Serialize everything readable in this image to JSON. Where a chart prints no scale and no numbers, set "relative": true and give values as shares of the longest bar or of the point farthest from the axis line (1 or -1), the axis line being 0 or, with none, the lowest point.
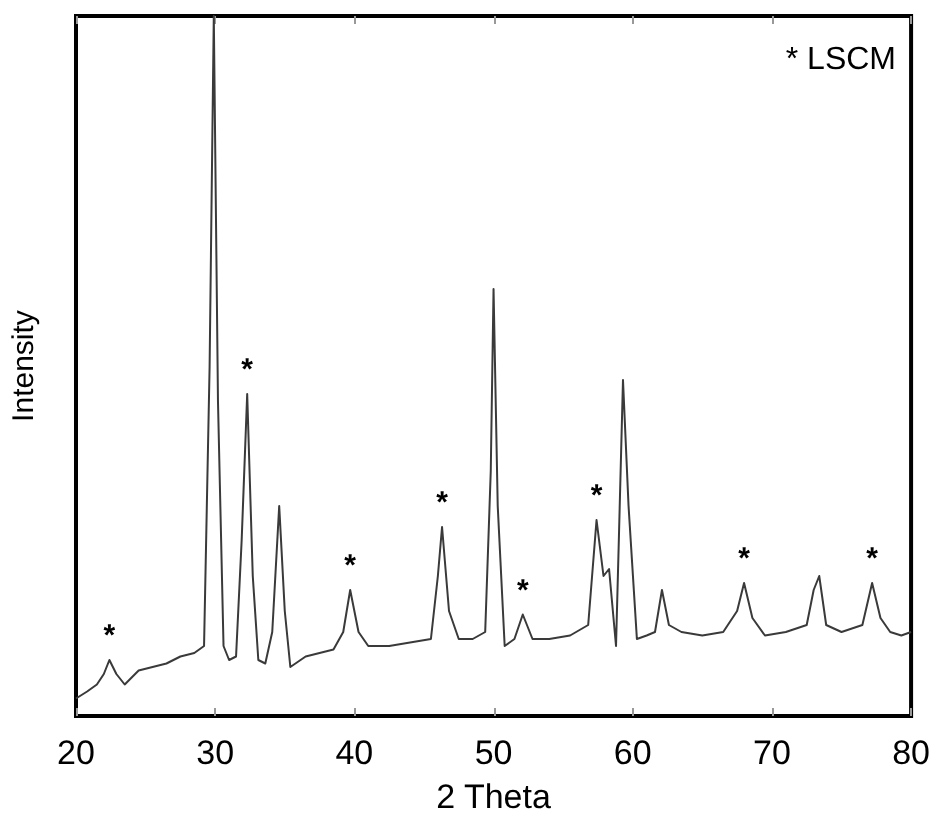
{
  "chart_data": {
    "type": "line",
    "relative": true,
    "xlabel": "2 Theta",
    "ylabel": "Intensity",
    "x": [
      20,
      20.8,
      21.5,
      22.0,
      22.4,
      22.9,
      23.5,
      24.5,
      25.5,
      26.5,
      27.5,
      28.5,
      29.2,
      29.6,
      29.9,
      30.2,
      30.6,
      31.0,
      31.5,
      31.9,
      32.3,
      32.7,
      33.1,
      33.6,
      34.1,
      34.6,
      35.0,
      35.4,
      36.5,
      37.5,
      38.5,
      39.2,
      39.7,
      40.3,
      41.0,
      42.5,
      44,
      45.5,
      46.0,
      46.3,
      46.8,
      47.5,
      48.5,
      49.4,
      49.8,
      50.0,
      50.3,
      50.8,
      51.5,
      52.1,
      52.8,
      54,
      55.5,
      56.8,
      57.4,
      57.9,
      58.3,
      58.8,
      59.0,
      59.3,
      59.7,
      60.3,
      61.0,
      61.6,
      62.1,
      62.6,
      63.5,
      65,
      66.5,
      67.5,
      68.0,
      68.6,
      69.5,
      71,
      72.5,
      73.0,
      73.4,
      73.9,
      75,
      76.5,
      77.2,
      77.8,
      78.5,
      79.3,
      80
    ],
    "values": [
      0.025,
      0.035,
      0.045,
      0.06,
      0.08,
      0.06,
      0.045,
      0.065,
      0.07,
      0.075,
      0.085,
      0.09,
      0.1,
      0.5,
      1.0,
      0.45,
      0.1,
      0.08,
      0.085,
      0.25,
      0.46,
      0.2,
      0.08,
      0.075,
      0.12,
      0.3,
      0.15,
      0.07,
      0.085,
      0.09,
      0.095,
      0.12,
      0.18,
      0.12,
      0.1,
      0.1,
      0.105,
      0.11,
      0.2,
      0.27,
      0.15,
      0.11,
      0.11,
      0.12,
      0.35,
      0.61,
      0.3,
      0.1,
      0.11,
      0.145,
      0.11,
      0.11,
      0.115,
      0.13,
      0.28,
      0.2,
      0.21,
      0.1,
      0.25,
      0.48,
      0.3,
      0.11,
      0.115,
      0.12,
      0.18,
      0.13,
      0.12,
      0.115,
      0.12,
      0.15,
      0.19,
      0.14,
      0.115,
      0.12,
      0.13,
      0.18,
      0.2,
      0.13,
      0.12,
      0.13,
      0.19,
      0.14,
      0.12,
      0.115,
      0.12
    ],
    "color": "#3a3a3a",
    "marker": "none",
    "grid": false,
    "xlim": [
      20,
      80
    ],
    "xticks": [
      20,
      30,
      40,
      50,
      60,
      70,
      80
    ],
    "annotations": [
      "* LSCM",
      {
        "text": "*",
        "x": 22.4,
        "y": 0.08
      },
      {
        "text": "*",
        "x": 32.3,
        "y": 0.46
      },
      {
        "text": "*",
        "x": 39.7,
        "y": 0.18
      },
      {
        "text": "*",
        "x": 46.3,
        "y": 0.27
      },
      {
        "text": "*",
        "x": 52.1,
        "y": 0.145
      },
      {
        "text": "*",
        "x": 57.4,
        "y": 0.28
      },
      {
        "text": "*",
        "x": 68.0,
        "y": 0.19
      },
      {
        "text": "*",
        "x": 77.2,
        "y": 0.19
      }
    ]
  }
}
